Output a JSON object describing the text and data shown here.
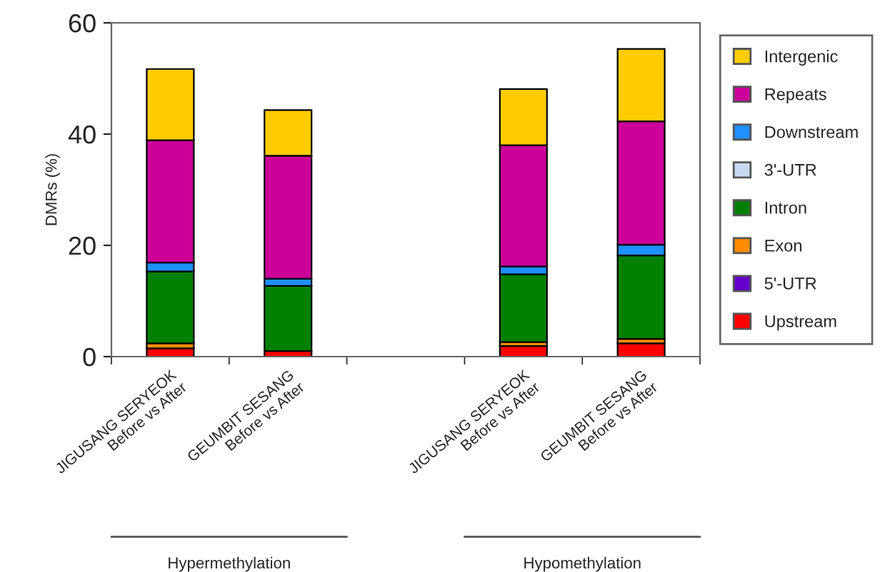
{
  "chart_data": {
    "type": "bar",
    "stacked": true,
    "ylabel": "DMRs (%)",
    "categories": [
      "JIGUSANG SERYEOK\nBefore vs After",
      "GEUMBIT SESANG\nBefore vs After",
      null,
      "JIGUSANG SERYEOK\nBefore vs After",
      "GEUMBIT SESANG\nBefore vs After"
    ],
    "series": [
      {
        "name": "Upstream",
        "color": "#ff0000",
        "values": [
          1.5,
          1.0,
          null,
          1.9,
          2.4
        ]
      },
      {
        "name": "5'-UTR",
        "color": "#6600cc",
        "values": [
          0,
          0,
          null,
          0,
          0
        ]
      },
      {
        "name": "Exon",
        "color": "#ff8c00",
        "values": [
          0.9,
          null,
          null,
          0.7,
          0.8
        ]
      },
      {
        "name": "Intron",
        "color": "#008000",
        "values": [
          12.9,
          11.7,
          null,
          12.2,
          15.0
        ]
      },
      {
        "name": "3'-UTR",
        "color": "#c6d9f1",
        "values": [
          0,
          0,
          null,
          0,
          0
        ]
      },
      {
        "name": "Downstream",
        "color": "#1e90ff",
        "values": [
          1.6,
          1.3,
          null,
          1.4,
          1.9
        ]
      },
      {
        "name": "Repeats",
        "color": "#cc0099",
        "values": [
          22.0,
          22.1,
          null,
          21.8,
          22.2
        ]
      },
      {
        "name": "Intergenic",
        "color": "#ffcc00",
        "values": [
          12.8,
          8.2,
          null,
          10.1,
          13.0
        ]
      }
    ],
    "ylim": [
      0,
      60
    ],
    "yticks": [
      0,
      20,
      40,
      60
    ],
    "grid": false,
    "legend": "right",
    "annotations": [
      "Hypermethylation",
      "Hypomethylation"
    ]
  }
}
